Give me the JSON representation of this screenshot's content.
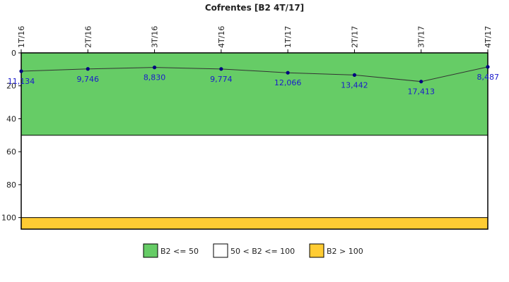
{
  "chart_data": {
    "type": "line",
    "title": "Cofrentes [B2 4T/17]",
    "xlabel": "",
    "ylabel": "",
    "categories": [
      "1T/16",
      "2T/16",
      "3T/16",
      "4T/16",
      "1T/17",
      "2T/17",
      "3T/17",
      "4T/17"
    ],
    "values": [
      11.134,
      9.746,
      8.83,
      9.774,
      12.066,
      13.442,
      17.413,
      8.487
    ],
    "value_labels": [
      "11,134",
      "9,746",
      "8,830",
      "9,774",
      "12,066",
      "13,442",
      "17,413",
      "8,487"
    ],
    "ylim": [
      0,
      107
    ],
    "y_inverted": true,
    "yticks": [
      0,
      20,
      40,
      60,
      80,
      100
    ],
    "grid": false,
    "bands": [
      {
        "from": 0,
        "to": 50,
        "color": "#66cc66"
      },
      {
        "from": 50,
        "to": 100,
        "color": "#ffffff"
      },
      {
        "from": 100,
        "to": 107,
        "color": "#ffcc33"
      }
    ],
    "legend": [
      {
        "label": "B2 <= 50",
        "color": "#66cc66"
      },
      {
        "label": "50 < B2 <= 100",
        "color": "#ffffff"
      },
      {
        "label": "B2 > 100",
        "color": "#ffcc33"
      }
    ],
    "legend_placement": "bottom",
    "colors": {
      "line": "#333333",
      "marker": "#000080",
      "label": "#1a1acc"
    }
  }
}
